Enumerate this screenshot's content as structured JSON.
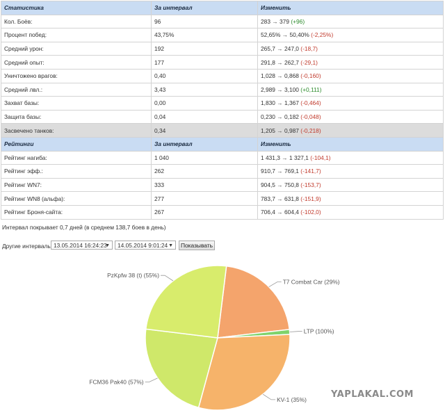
{
  "stats": {
    "headers": [
      "Статистика",
      "За интервал",
      "Изменить"
    ],
    "rows": [
      {
        "label": "Кол. Боёв:",
        "interval": "96",
        "from": "283",
        "to": "379",
        "delta": "(+96)",
        "dir": "pos"
      },
      {
        "label": "Процент побед:",
        "interval": "43,75%",
        "from": "52,65%",
        "to": "50,40%",
        "delta": "(-2,25%)",
        "dir": "neg"
      },
      {
        "label": "Средний урон:",
        "interval": "192",
        "from": "265,7",
        "to": "247,0",
        "delta": "(-18,7)",
        "dir": "neg"
      },
      {
        "label": "Средний опыт:",
        "interval": "177",
        "from": "291,8",
        "to": "262,7",
        "delta": "(-29,1)",
        "dir": "neg"
      },
      {
        "label": "Уничтожено врагов:",
        "interval": "0,40",
        "from": "1,028",
        "to": "0,868",
        "delta": "(-0,160)",
        "dir": "neg"
      },
      {
        "label": "Средний лвл.:",
        "interval": "3,43",
        "from": "2,989",
        "to": "3,100",
        "delta": "(+0,111)",
        "dir": "pos"
      },
      {
        "label": "Захват базы:",
        "interval": "0,00",
        "from": "1,830",
        "to": "1,367",
        "delta": "(-0,464)",
        "dir": "neg"
      },
      {
        "label": "Защита базы:",
        "interval": "0,04",
        "from": "0,230",
        "to": "0,182",
        "delta": "(-0,048)",
        "dir": "neg"
      },
      {
        "label": "Засвечено танков:",
        "interval": "0,34",
        "from": "1,205",
        "to": "0,987",
        "delta": "(-0,218)",
        "dir": "neg",
        "highlight": true
      }
    ]
  },
  "ratings": {
    "headers": [
      "Рейтинги",
      "За интервал",
      "Изменить"
    ],
    "rows": [
      {
        "label": "Рейтинг нагиба:",
        "interval": "1 040",
        "from": "1 431,3",
        "to": "1 327,1",
        "delta": "(-104,1)",
        "dir": "neg"
      },
      {
        "label": "Рейтинг эфф.:",
        "interval": "262",
        "from": "910,7",
        "to": "769,1",
        "delta": "(-141,7)",
        "dir": "neg"
      },
      {
        "label": "Рейтинг WN7:",
        "interval": "333",
        "from": "904,5",
        "to": "750,8",
        "delta": "(-153,7)",
        "dir": "neg"
      },
      {
        "label": "Рейтинг WN8 (альфа):",
        "interval": "277",
        "from": "783,7",
        "to": "631,8",
        "delta": "(-151,9)",
        "dir": "neg"
      },
      {
        "label": "Рейтинг Броня-сайта:",
        "interval": "267",
        "from": "706,4",
        "to": "604,4",
        "delta": "(-102,0)",
        "dir": "neg"
      }
    ]
  },
  "arrow": "→",
  "interval_note": "Интервал покрывает 0,7 дней (в среднем 138,7 боев в день)",
  "controls": {
    "label": "Другие интервалы:",
    "from_value": "13.05.2014 16:24:23",
    "to_value": "14.05.2014 9:01:24",
    "dropdown_glyph": "▼",
    "button_label": "Показывать"
  },
  "colors": {
    "header_bg": "#c9dcf3",
    "positive": "#2a8a2a",
    "negative": "#c0392b"
  },
  "chart_data": {
    "type": "pie",
    "slices": [
      {
        "label": "T7 Combat Car (29%)",
        "value": 21.2,
        "color": "#f4a46c"
      },
      {
        "label": "LTP (100%)",
        "value": 1.1,
        "color": "#7ed36b"
      },
      {
        "label": "KV-1 (35%)",
        "value": 30.0,
        "color": "#f6b36a"
      },
      {
        "label": "FCM36 Pak40 (57%)",
        "value": 22.7,
        "color": "#cfe86a"
      },
      {
        "label": "PzKpfw 38 (t) (55%)",
        "value": 25.0,
        "color": "#d8ec6c"
      }
    ]
  },
  "watermark": "YAPLAKAL.COM"
}
